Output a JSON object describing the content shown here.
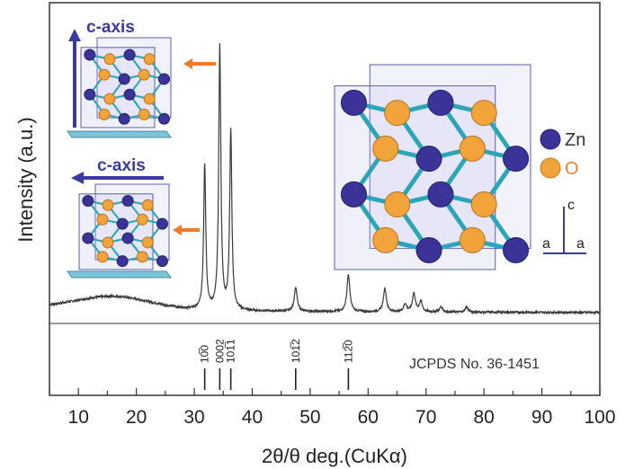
{
  "chart_data": {
    "type": "line",
    "xlabel": "2θ/θ deg.(CuKα)",
    "ylabel": "Intensity (a.u.)",
    "xlim": [
      5,
      100
    ],
    "xticks": [
      10,
      20,
      30,
      40,
      50,
      60,
      70,
      80,
      90,
      100
    ],
    "baseline_noise": true,
    "peaks": [
      {
        "x": 31.8,
        "intensity": 0.55
      },
      {
        "x": 34.4,
        "intensity": 1.0
      },
      {
        "x": 36.3,
        "intensity": 0.68
      },
      {
        "x": 47.5,
        "intensity": 0.09
      },
      {
        "x": 56.6,
        "intensity": 0.14
      },
      {
        "x": 62.9,
        "intensity": 0.09
      },
      {
        "x": 66.4,
        "intensity": 0.03
      },
      {
        "x": 67.9,
        "intensity": 0.07
      },
      {
        "x": 69.1,
        "intensity": 0.04
      },
      {
        "x": 72.6,
        "intensity": 0.02
      },
      {
        "x": 77.0,
        "intensity": 0.02
      }
    ],
    "reference": {
      "label": "JCPDS No. 36-1451",
      "lines": [
        {
          "x": 31.8,
          "label": "10̅0"
        },
        {
          "x": 34.4,
          "label": "0002"
        },
        {
          "x": 36.3,
          "label": "101̅1"
        },
        {
          "x": 47.5,
          "label": "101̅2"
        },
        {
          "x": 56.6,
          "label": "112̅0"
        }
      ]
    }
  },
  "insets": {
    "c_axis_vertical": "c-axis",
    "c_axis_horizontal": "c-axis"
  },
  "legend": {
    "zn": {
      "label": "Zn",
      "color": "#3b3398"
    },
    "o": {
      "label": "O",
      "color": "#f2a33a"
    }
  },
  "crystal_axes": {
    "c": "c",
    "a1": "a",
    "a2": "a"
  },
  "colors": {
    "arrow": "#f07a2a",
    "bond": "#2aa6b8",
    "cell": "#5b5bc0",
    "substrate": "#7fc3d9"
  }
}
